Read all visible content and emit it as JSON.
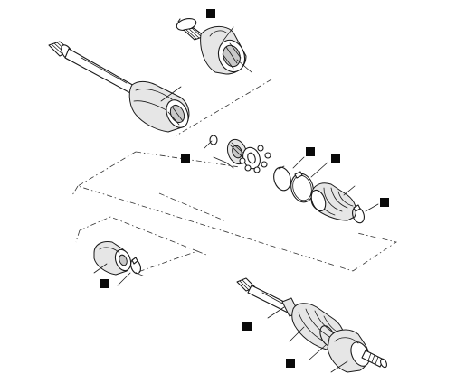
{
  "diagram": {
    "title": "",
    "labels": [],
    "marker_count": 8,
    "colors": {
      "line": "#1a1a1a",
      "marker": "#0a0a0a",
      "background": "#ffffff"
    }
  }
}
